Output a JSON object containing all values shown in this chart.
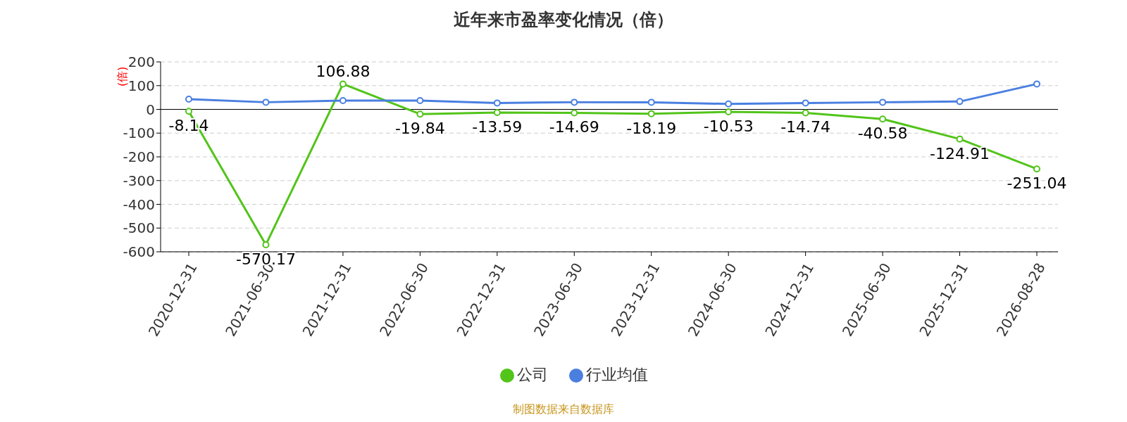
{
  "chart_data": {
    "type": "line",
    "title": "近年来市盈率变化情况（倍）",
    "ylabel": "(倍)",
    "categories": [
      "2020-12-31",
      "2021-06-30",
      "2021-12-31",
      "2022-06-30",
      "2022-12-31",
      "2023-06-30",
      "2023-12-31",
      "2024-06-30",
      "2024-12-31",
      "2025-06-30",
      "2025-12-31",
      "2026-08-28"
    ],
    "series": [
      {
        "name": "公司",
        "color": "#52c41a",
        "values": [
          -8.14,
          -570.17,
          106.88,
          -19.84,
          -13.59,
          -14.69,
          -18.19,
          -10.53,
          -14.74,
          -40.58,
          -124.91,
          -251.04
        ],
        "value_labels": [
          "-8.14",
          "-570.17",
          "106.88",
          "-19.84",
          "-13.59",
          "-14.69",
          "-18.19",
          "-10.53",
          "-14.74",
          "-40.58",
          "-124.91",
          "-251.04"
        ]
      },
      {
        "name": "行业均值",
        "color": "#4a7fe0",
        "values": [
          43,
          30,
          37,
          37,
          27,
          30,
          30,
          23,
          27,
          30,
          33,
          107
        ]
      }
    ],
    "ylim": [
      -600,
      200
    ],
    "yticks": [
      -600,
      -500,
      -400,
      -300,
      -200,
      -100,
      0,
      100,
      200
    ],
    "grid": "y",
    "legend": "bottom",
    "marker": "circle",
    "line_style": "solid",
    "annotations": [
      "制图数据来自数据库"
    ]
  }
}
